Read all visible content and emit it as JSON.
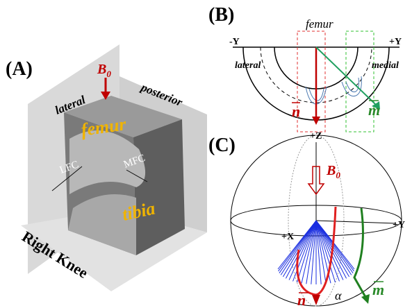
{
  "panels": {
    "a": {
      "label": "(A)",
      "b0": {
        "symbol": "B",
        "subscript": "0"
      },
      "lateral": "lateral",
      "posterior": "posterior",
      "femur": "femur",
      "lfc": "LFC",
      "mfc": "MFC",
      "tibia": "tibia",
      "caption": "Right Knee"
    },
    "b": {
      "label": "(B)",
      "femur": "femur",
      "minus_y": "-Y",
      "plus_y": "+Y",
      "lateral": "lateral",
      "medial": "medial",
      "n": "n",
      "m": "m"
    },
    "c": {
      "label": "(C)",
      "plus_z": "+Z",
      "b0": {
        "symbol": "B",
        "subscript": "0"
      },
      "plus_y": "+Y",
      "plus_x": "+X",
      "m": "m",
      "n": "n",
      "alpha": "α"
    }
  }
}
